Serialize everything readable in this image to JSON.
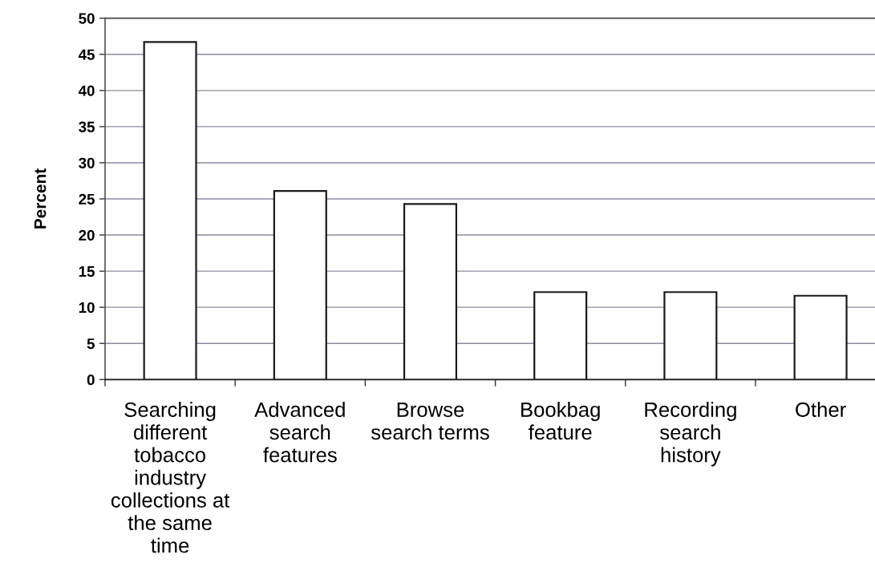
{
  "chart_data": {
    "type": "bar",
    "ylabel": "Percent",
    "categories": [
      "Searching\ndifferent\ntobacco\nindustry\ncollections at\nthe same\ntime",
      "Advanced\nsearch\nfeatures",
      "Browse\nsearch terms",
      "Bookbag\nfeature",
      "Recording\nsearch\nhistory",
      "Other"
    ],
    "values": [
      46.7,
      26.1,
      24.3,
      12.1,
      12.1,
      11.6
    ],
    "color": "#ffffff",
    "ylim": [
      0,
      50
    ],
    "yticks": [
      0,
      5,
      10,
      15,
      20,
      25,
      30,
      35,
      40,
      45,
      50
    ],
    "grid": "y"
  }
}
